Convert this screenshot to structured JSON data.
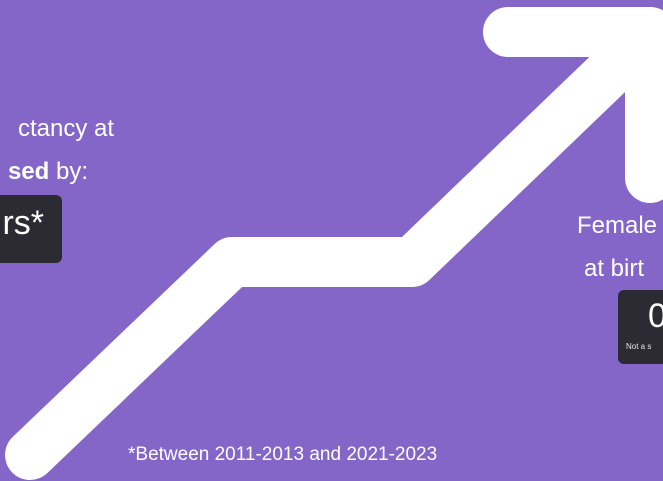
{
  "colors": {
    "background": "#8466c8",
    "arrow": "#ffffff",
    "text": "#ffffff",
    "badge_background": "#2c2b33"
  },
  "arrow": {
    "icon": "upward-trend-arrow-icon"
  },
  "male_block": {
    "line1": "ctancy at",
    "line2_bold": "sed",
    "line2_rest": " by:",
    "badge_value": "rs*"
  },
  "female_block": {
    "line1": "Female",
    "line2": "at birt",
    "badge_value": "0",
    "badge_note": "Not a s"
  },
  "footnote": "*Between 2011-2013 and 2021-2023"
}
